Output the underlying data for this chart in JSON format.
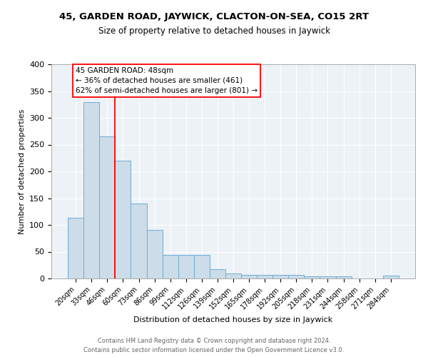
{
  "title1": "45, GARDEN ROAD, JAYWICK, CLACTON-ON-SEA, CO15 2RT",
  "title2": "Size of property relative to detached houses in Jaywick",
  "xlabel": "Distribution of detached houses by size in Jaywick",
  "ylabel": "Number of detached properties",
  "categories": [
    "20sqm",
    "33sqm",
    "46sqm",
    "60sqm",
    "73sqm",
    "86sqm",
    "99sqm",
    "112sqm",
    "126sqm",
    "139sqm",
    "152sqm",
    "165sqm",
    "178sqm",
    "192sqm",
    "205sqm",
    "218sqm",
    "231sqm",
    "244sqm",
    "258sqm",
    "271sqm",
    "284sqm"
  ],
  "values": [
    113,
    330,
    265,
    220,
    140,
    91,
    44,
    44,
    44,
    18,
    10,
    7,
    7,
    7,
    7,
    4,
    4,
    4,
    0,
    0,
    5
  ],
  "bar_color": "#ccdce8",
  "bar_edge_color": "#6aaed6",
  "red_line_index": 2,
  "annotation_title": "45 GARDEN ROAD: 48sqm",
  "annotation_line1": "← 36% of detached houses are smaller (461)",
  "annotation_line2": "62% of semi-detached houses are larger (801) →",
  "ylim": [
    0,
    400
  ],
  "yticks": [
    0,
    50,
    100,
    150,
    200,
    250,
    300,
    350,
    400
  ],
  "footer1": "Contains HM Land Registry data © Crown copyright and database right 2024.",
  "footer2": "Contains public sector information licensed under the Open Government Licence v3.0.",
  "plot_bg_color": "#edf2f7"
}
